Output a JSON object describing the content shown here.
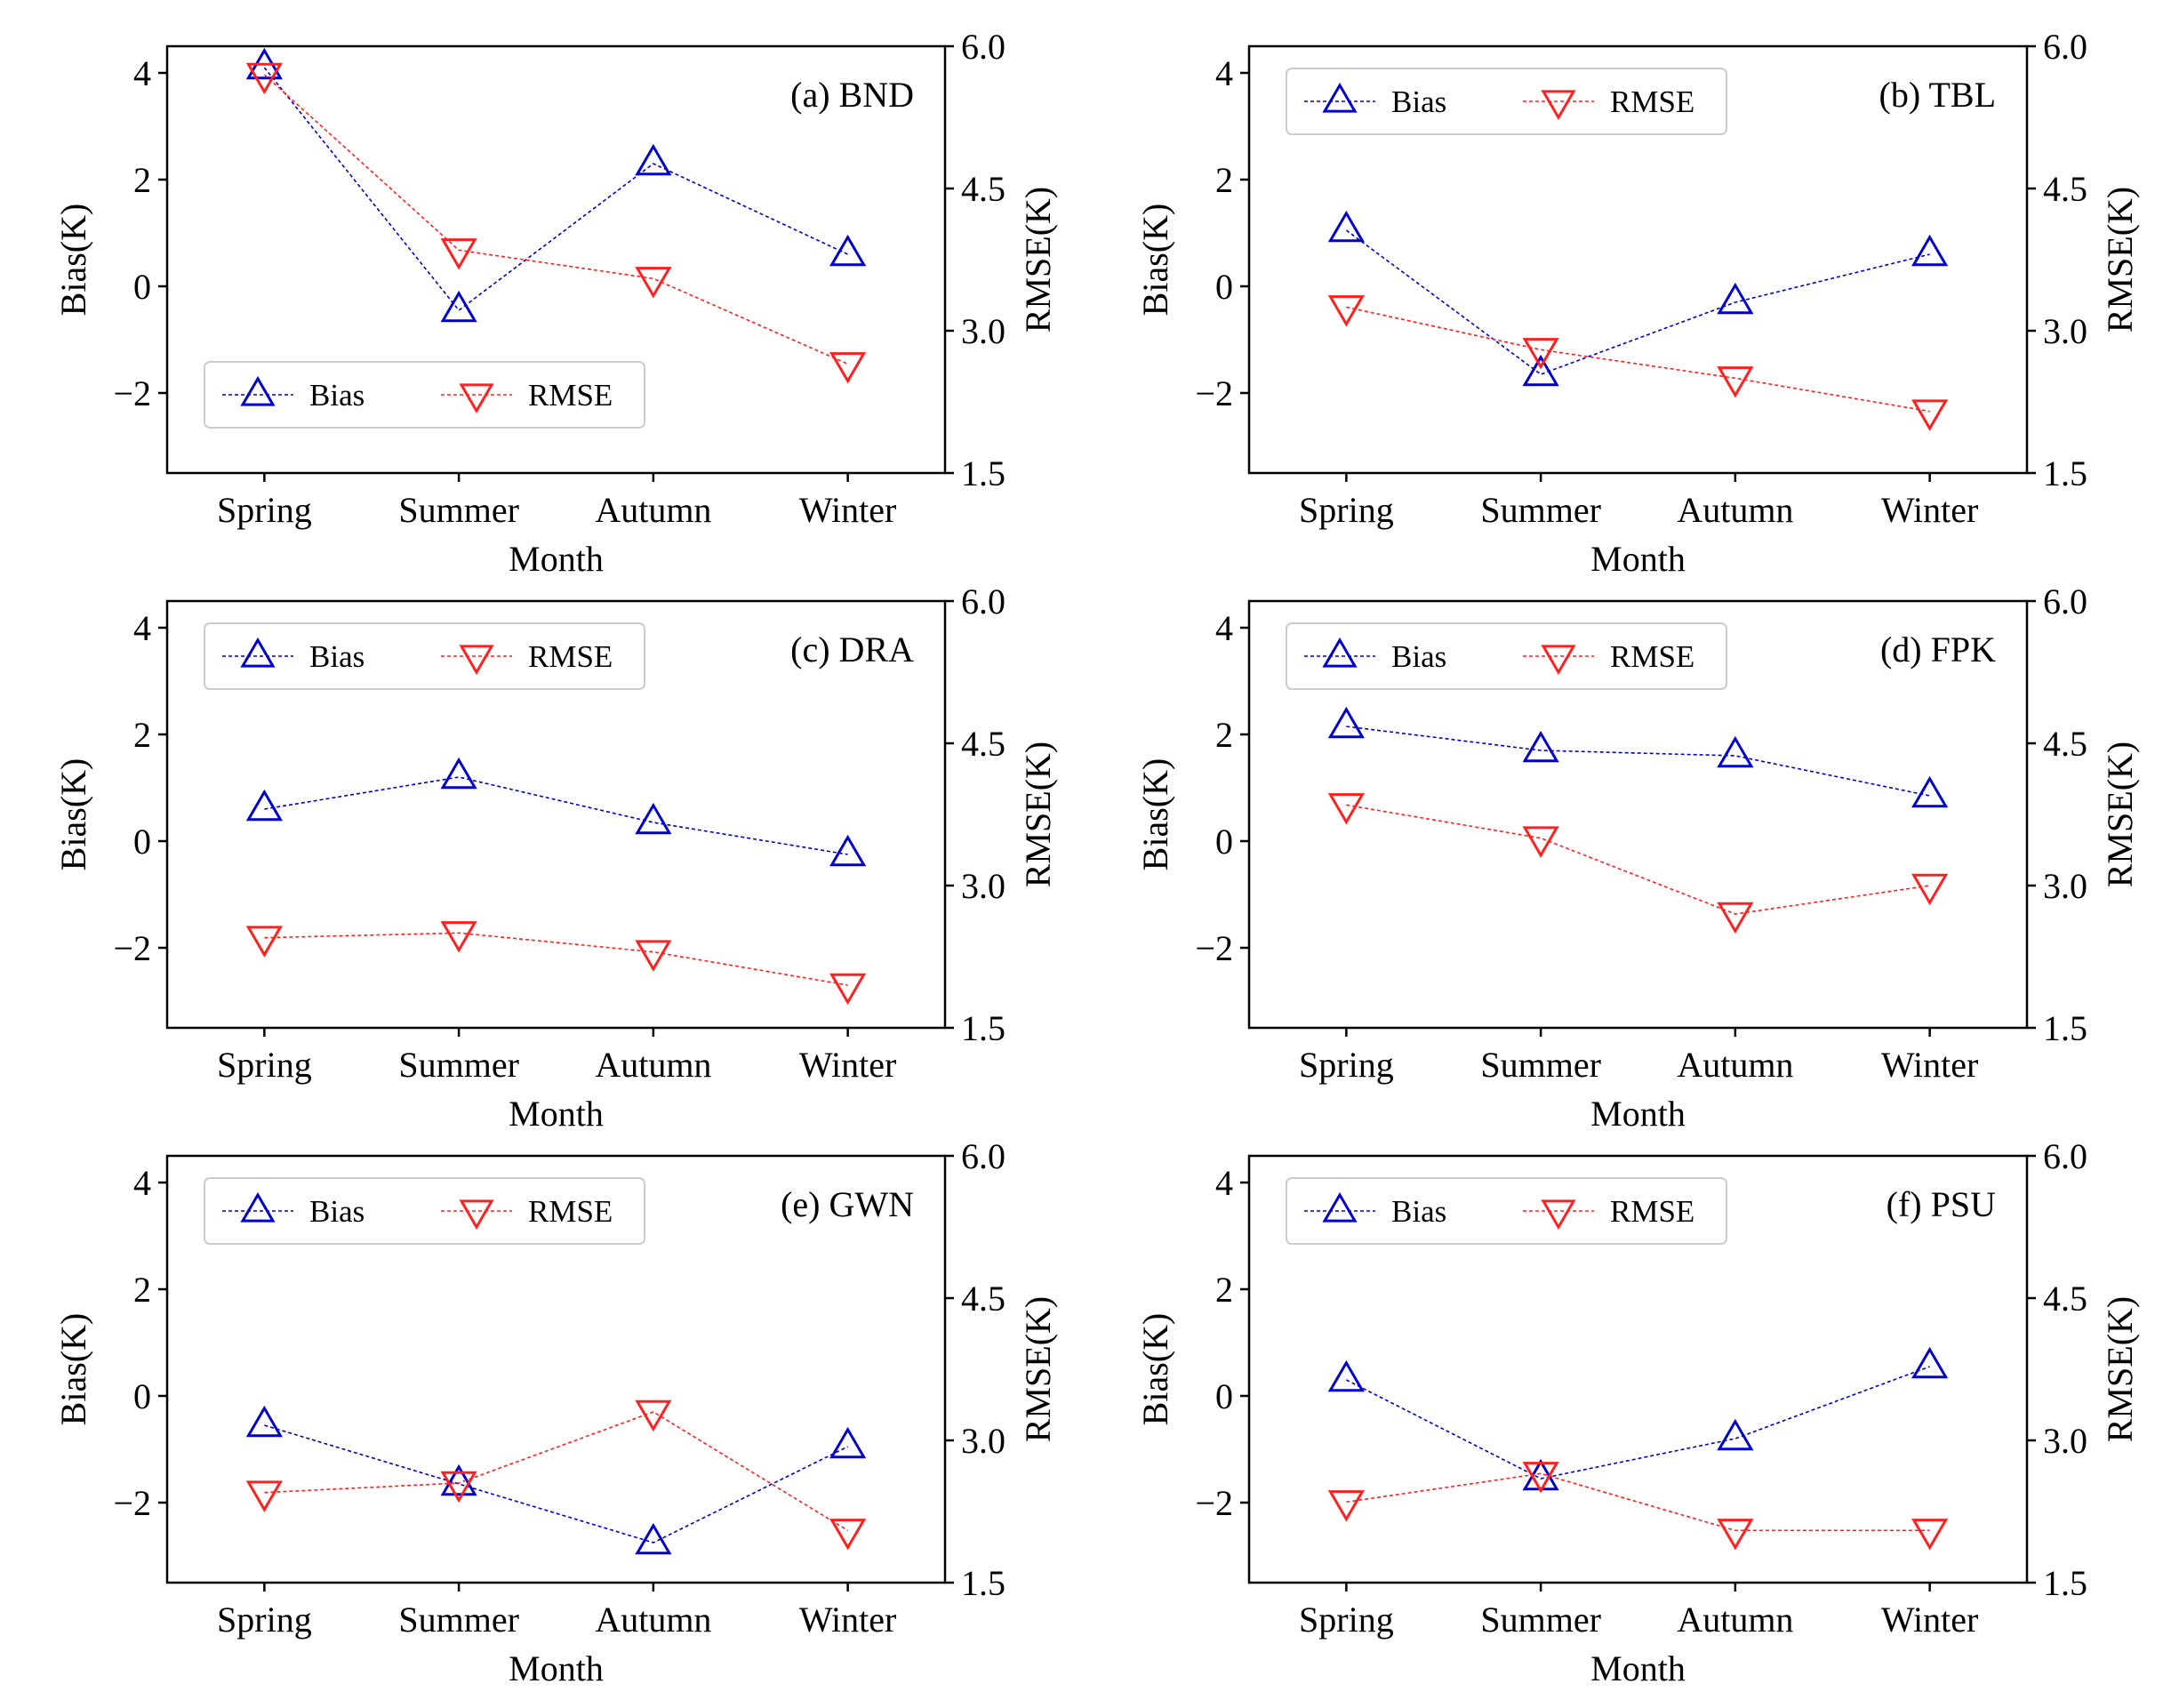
{
  "colors": {
    "bias": "#0000cc",
    "rmse": "#ff2020"
  },
  "legend_labels": {
    "bias": "Bias",
    "rmse": "RMSE"
  },
  "chart_data": [
    {
      "type": "line",
      "title": "(a) BND",
      "categories": [
        "Spring",
        "Summer",
        "Autumn",
        "Winter"
      ],
      "xlabel": "Month",
      "ylabel": "Bias(K)",
      "y2label": "RMSE(K)",
      "ylim": [
        -3.5,
        4.5
      ],
      "y2lim": [
        1.5,
        6.0
      ],
      "yticks": [
        "4",
        "2",
        "0",
        "−2"
      ],
      "y2ticks": [
        "6.0",
        "4.5",
        "3.0",
        "1.5"
      ],
      "legend_position": "lower-left",
      "series": [
        {
          "name": "Bias",
          "axis": "left",
          "marker": "triangle-up",
          "values": [
            4.1,
            -0.45,
            2.3,
            0.6
          ]
        },
        {
          "name": "RMSE",
          "axis": "right",
          "marker": "triangle-down",
          "values": [
            5.7,
            3.85,
            3.55,
            2.65
          ]
        }
      ]
    },
    {
      "type": "line",
      "title": "(b) TBL",
      "categories": [
        "Spring",
        "Summer",
        "Autumn",
        "Winter"
      ],
      "xlabel": "Month",
      "ylabel": "Bias(K)",
      "y2label": "RMSE(K)",
      "ylim": [
        -3.5,
        4.5
      ],
      "y2lim": [
        1.5,
        6.0
      ],
      "yticks": [
        "4",
        "2",
        "0",
        "−2"
      ],
      "y2ticks": [
        "6.0",
        "4.5",
        "3.0",
        "1.5"
      ],
      "legend_position": "upper-left",
      "series": [
        {
          "name": "Bias",
          "axis": "left",
          "marker": "triangle-up",
          "values": [
            1.05,
            -1.65,
            -0.3,
            0.6
          ]
        },
        {
          "name": "RMSE",
          "axis": "right",
          "marker": "triangle-down",
          "values": [
            3.25,
            2.8,
            2.5,
            2.15
          ]
        }
      ]
    },
    {
      "type": "line",
      "title": "(c) DRA",
      "categories": [
        "Spring",
        "Summer",
        "Autumn",
        "Winter"
      ],
      "xlabel": "Month",
      "ylabel": "Bias(K)",
      "y2label": "RMSE(K)",
      "ylim": [
        -3.5,
        4.5
      ],
      "y2lim": [
        1.5,
        6.0
      ],
      "yticks": [
        "4",
        "2",
        "0",
        "−2"
      ],
      "y2ticks": [
        "6.0",
        "4.5",
        "3.0",
        "1.5"
      ],
      "legend_position": "upper-left",
      "series": [
        {
          "name": "Bias",
          "axis": "left",
          "marker": "triangle-up",
          "values": [
            0.6,
            1.2,
            0.35,
            -0.25
          ]
        },
        {
          "name": "RMSE",
          "axis": "right",
          "marker": "triangle-down",
          "values": [
            2.45,
            2.5,
            2.3,
            1.95
          ]
        }
      ]
    },
    {
      "type": "line",
      "title": "(d) FPK",
      "categories": [
        "Spring",
        "Summer",
        "Autumn",
        "Winter"
      ],
      "xlabel": "Month",
      "ylabel": "Bias(K)",
      "y2label": "RMSE(K)",
      "ylim": [
        -3.5,
        4.5
      ],
      "y2lim": [
        1.5,
        6.0
      ],
      "yticks": [
        "4",
        "2",
        "0",
        "−2"
      ],
      "y2ticks": [
        "6.0",
        "4.5",
        "3.0",
        "1.5"
      ],
      "legend_position": "upper-left",
      "series": [
        {
          "name": "Bias",
          "axis": "left",
          "marker": "triangle-up",
          "values": [
            2.15,
            1.7,
            1.6,
            0.85
          ]
        },
        {
          "name": "RMSE",
          "axis": "right",
          "marker": "triangle-down",
          "values": [
            3.85,
            3.5,
            2.7,
            3.0
          ]
        }
      ]
    },
    {
      "type": "line",
      "title": "(e) GWN",
      "categories": [
        "Spring",
        "Summer",
        "Autumn",
        "Winter"
      ],
      "xlabel": "Month",
      "ylabel": "Bias(K)",
      "y2label": "RMSE(K)",
      "ylim": [
        -3.5,
        4.5
      ],
      "y2lim": [
        1.5,
        6.0
      ],
      "yticks": [
        "4",
        "2",
        "0",
        "−2"
      ],
      "y2ticks": [
        "6.0",
        "4.5",
        "3.0",
        "1.5"
      ],
      "legend_position": "upper-left",
      "series": [
        {
          "name": "Bias",
          "axis": "left",
          "marker": "triangle-up",
          "values": [
            -0.55,
            -1.65,
            -2.75,
            -0.95
          ]
        },
        {
          "name": "RMSE",
          "axis": "right",
          "marker": "triangle-down",
          "values": [
            2.45,
            2.55,
            3.3,
            2.05
          ]
        }
      ]
    },
    {
      "type": "line",
      "title": "(f) PSU",
      "categories": [
        "Spring",
        "Summer",
        "Autumn",
        "Winter"
      ],
      "xlabel": "Month",
      "ylabel": "Bias(K)",
      "y2label": "RMSE(K)",
      "ylim": [
        -3.5,
        4.5
      ],
      "y2lim": [
        1.5,
        6.0
      ],
      "yticks": [
        "4",
        "2",
        "0",
        "−2"
      ],
      "y2ticks": [
        "6.0",
        "4.5",
        "3.0",
        "1.5"
      ],
      "legend_position": "upper-left",
      "series": [
        {
          "name": "Bias",
          "axis": "left",
          "marker": "triangle-up",
          "values": [
            0.3,
            -1.55,
            -0.8,
            0.55
          ]
        },
        {
          "name": "RMSE",
          "axis": "right",
          "marker": "triangle-down",
          "values": [
            2.35,
            2.65,
            2.05,
            2.05
          ]
        }
      ]
    }
  ]
}
